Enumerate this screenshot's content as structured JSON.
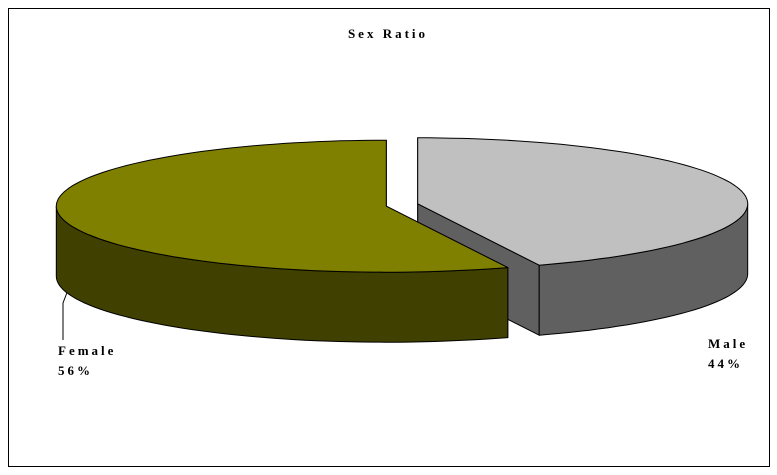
{
  "chart_data": {
    "type": "pie",
    "title": "Sex Ratio",
    "categories": [
      "Male",
      "Female"
    ],
    "values": [
      44,
      56
    ],
    "value_labels": [
      "44%",
      "56%"
    ],
    "colors": [
      "#c0c0c0",
      "#808000"
    ]
  }
}
